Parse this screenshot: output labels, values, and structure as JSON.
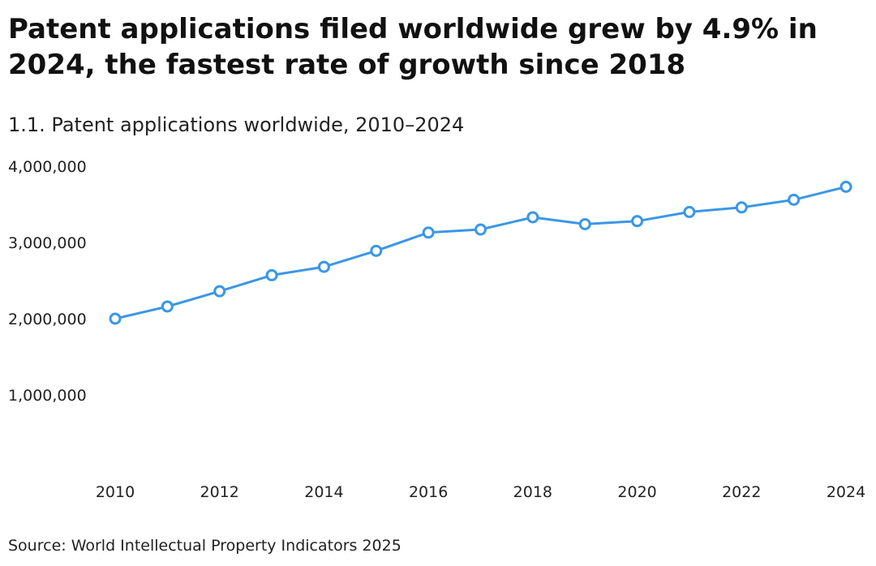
{
  "header": {
    "title": "Patent applications filed worldwide grew by 4.9% in 2024, the fastest rate of growth since 2018",
    "subtitle": "1.1. Patent applications worldwide, 2010–2024"
  },
  "footer": {
    "source": "Source: World Intellectual Property Indicators 2025"
  },
  "chart_data": {
    "type": "line",
    "x": [
      2010,
      2011,
      2012,
      2013,
      2014,
      2015,
      2016,
      2017,
      2018,
      2019,
      2020,
      2021,
      2022,
      2023,
      2024
    ],
    "series": [
      {
        "values": [
          2000000,
          2160000,
          2360000,
          2570000,
          2680000,
          2890000,
          3130000,
          3170000,
          3330000,
          3240000,
          3280000,
          3400000,
          3460000,
          3560000,
          3730000
        ]
      }
    ],
    "y_ticks": [
      "1,000,000",
      "2,000,000",
      "3,000,000",
      "4,000,000"
    ],
    "y_tick_values": [
      1000000,
      2000000,
      3000000,
      4000000
    ],
    "x_ticks": [
      "2010",
      "2012",
      "2014",
      "2016",
      "2018",
      "2020",
      "2022",
      "2024"
    ],
    "x_tick_values": [
      2010,
      2012,
      2014,
      2016,
      2018,
      2020,
      2022,
      2024
    ],
    "ylim": [
      0,
      4000000
    ],
    "xlim": [
      2010,
      2024
    ],
    "xlabel": "",
    "ylabel": "",
    "grid": false,
    "legend": "none",
    "line_color": "#3b97e6",
    "marker_fill": "#ffffff"
  }
}
